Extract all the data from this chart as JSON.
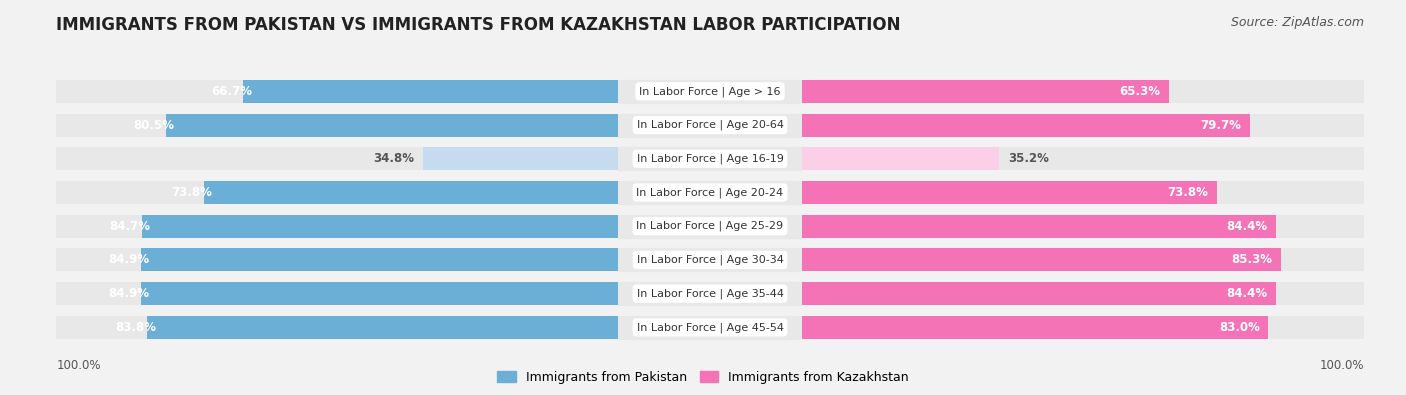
{
  "title": "IMMIGRANTS FROM PAKISTAN VS IMMIGRANTS FROM KAZAKHSTAN LABOR PARTICIPATION",
  "source": "Source: ZipAtlas.com",
  "categories": [
    "In Labor Force | Age > 16",
    "In Labor Force | Age 20-64",
    "In Labor Force | Age 16-19",
    "In Labor Force | Age 20-24",
    "In Labor Force | Age 25-29",
    "In Labor Force | Age 30-34",
    "In Labor Force | Age 35-44",
    "In Labor Force | Age 45-54"
  ],
  "pakistan_values": [
    66.7,
    80.5,
    34.8,
    73.8,
    84.7,
    84.9,
    84.9,
    83.8
  ],
  "kazakhstan_values": [
    65.3,
    79.7,
    35.2,
    73.8,
    84.4,
    85.3,
    84.4,
    83.0
  ],
  "pakistan_color": "#6baed6",
  "pakistan_light_color": "#c6dbef",
  "kazakhstan_color": "#f472b6",
  "kazakhstan_light_color": "#fbcfe8",
  "background_color": "#f2f2f2",
  "row_bg_color": "#e8e8e8",
  "label_bg_color": "#ffffff",
  "title_fontsize": 12,
  "source_fontsize": 9,
  "bar_label_fontsize": 8.5,
  "cat_label_fontsize": 8,
  "legend_label_pakistan": "Immigrants from Pakistan",
  "legend_label_kazakhstan": "Immigrants from Kazakhstan",
  "max_value": 100.0,
  "footer_label": "100.0%"
}
